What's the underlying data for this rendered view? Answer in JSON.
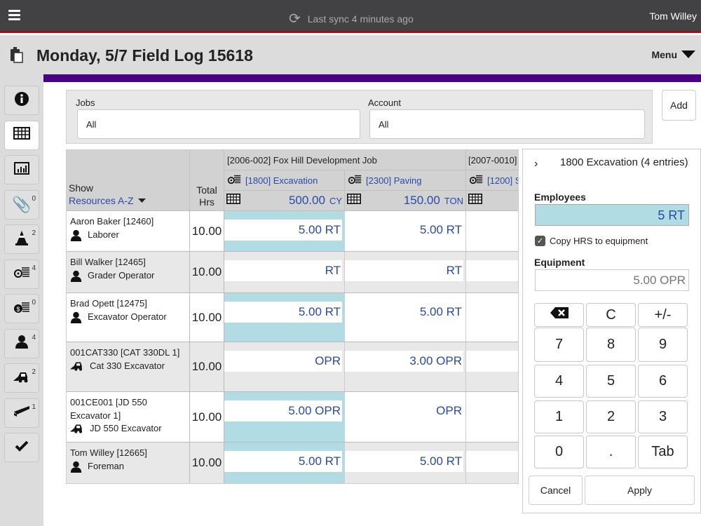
{
  "topbar": {
    "sync_text": "Last sync 4 minutes ago",
    "user": "Tom Willey"
  },
  "header": {
    "title": "Monday, 5/7 Field Log 15618",
    "menu_label": "Menu"
  },
  "sidebar": [
    {
      "icon": "info-icon",
      "badge": null,
      "active": false
    },
    {
      "icon": "grid-icon",
      "badge": null,
      "active": true
    },
    {
      "icon": "chart-icon",
      "badge": null,
      "active": false
    },
    {
      "icon": "paperclip-icon",
      "badge": "0",
      "active": false
    },
    {
      "icon": "cone-icon",
      "badge": "2",
      "active": false
    },
    {
      "icon": "target-list-icon",
      "badge": "4",
      "active": false
    },
    {
      "icon": "money-list-icon",
      "badge": "0",
      "active": false
    },
    {
      "icon": "person-icon",
      "badge": "4",
      "active": false
    },
    {
      "icon": "loader-icon",
      "badge": "2",
      "active": false
    },
    {
      "icon": "beam-icon",
      "badge": "1",
      "active": false
    },
    {
      "icon": "check-icon",
      "badge": null,
      "active": false
    }
  ],
  "filters": {
    "jobs_label": "Jobs",
    "jobs_value": "All",
    "account_label": "Account",
    "account_value": "All",
    "add_label": "Add"
  },
  "grid": {
    "show_label": "Show",
    "sort_label": "Resources A-Z",
    "total_label": "Total Hrs",
    "jobs": [
      {
        "label": "[2006-002] Fox Hill Development Job"
      },
      {
        "label": "[2007-0010]"
      }
    ],
    "columns": [
      {
        "label": "[1800] Excavation",
        "qty": "500.00",
        "unit": "CY"
      },
      {
        "label": "[2300] Paving",
        "qty": "150.00",
        "unit": "TON"
      },
      {
        "label": "[1200] S",
        "qty": "",
        "unit": ""
      }
    ],
    "rows": [
      {
        "name": "Aaron Baker [12460]",
        "role": "Laborer",
        "type": "person",
        "total": "10.00",
        "values": [
          "5.00 RT",
          "5.00 RT",
          ""
        ],
        "highlight": true
      },
      {
        "name": "Bill Walker [12465]",
        "role": "Grader Operator",
        "type": "person",
        "total": "10.00",
        "values": [
          "RT",
          "RT",
          ""
        ],
        "highlight": false
      },
      {
        "name": "Brad Opett [12475]",
        "role": "Excavator Operator",
        "type": "person",
        "total": "10.00",
        "values": [
          "5.00 RT",
          "5.00 RT",
          ""
        ],
        "highlight": true
      },
      {
        "name": "001CAT330 [CAT 330DL 1]",
        "role": "Cat 330 Excavator",
        "type": "equipment",
        "total": "10.00",
        "values": [
          "OPR",
          "3.00 OPR",
          ""
        ],
        "highlight": false
      },
      {
        "name": "001CE001 [JD 550 Excavator 1]",
        "role": "JD 550 Excavator",
        "type": "equipment",
        "total": "10.00",
        "values": [
          "5.00 OPR",
          "OPR",
          ""
        ],
        "highlight": true
      },
      {
        "name": "Tom Willey [12665]",
        "role": "Foreman",
        "type": "person",
        "total": "10.00",
        "values": [
          "5.00 RT",
          "5.00 RT",
          ""
        ],
        "highlight": true
      }
    ]
  },
  "panel": {
    "title": "1800 Excavation (4 entries)",
    "employees_label": "Employees",
    "employees_value": "5 RT",
    "copy_label": "Copy HRS to equipment",
    "copy_checked": true,
    "equipment_label": "Equipment",
    "equipment_placeholder": "5.00 OPR",
    "keys": [
      [
        "⌫",
        "C",
        "+/-"
      ],
      [
        "7",
        "8",
        "9"
      ],
      [
        "4",
        "5",
        "6"
      ],
      [
        "1",
        "2",
        "3"
      ],
      [
        "0",
        ".",
        "Tab"
      ]
    ],
    "cancel_label": "Cancel",
    "apply_label": "Apply"
  },
  "colors": {
    "highlight": "#b2dce3",
    "purple": "#4b0089",
    "topbar": "#424244",
    "accent_red": "#a30d12",
    "link": "#2a4aa8"
  }
}
